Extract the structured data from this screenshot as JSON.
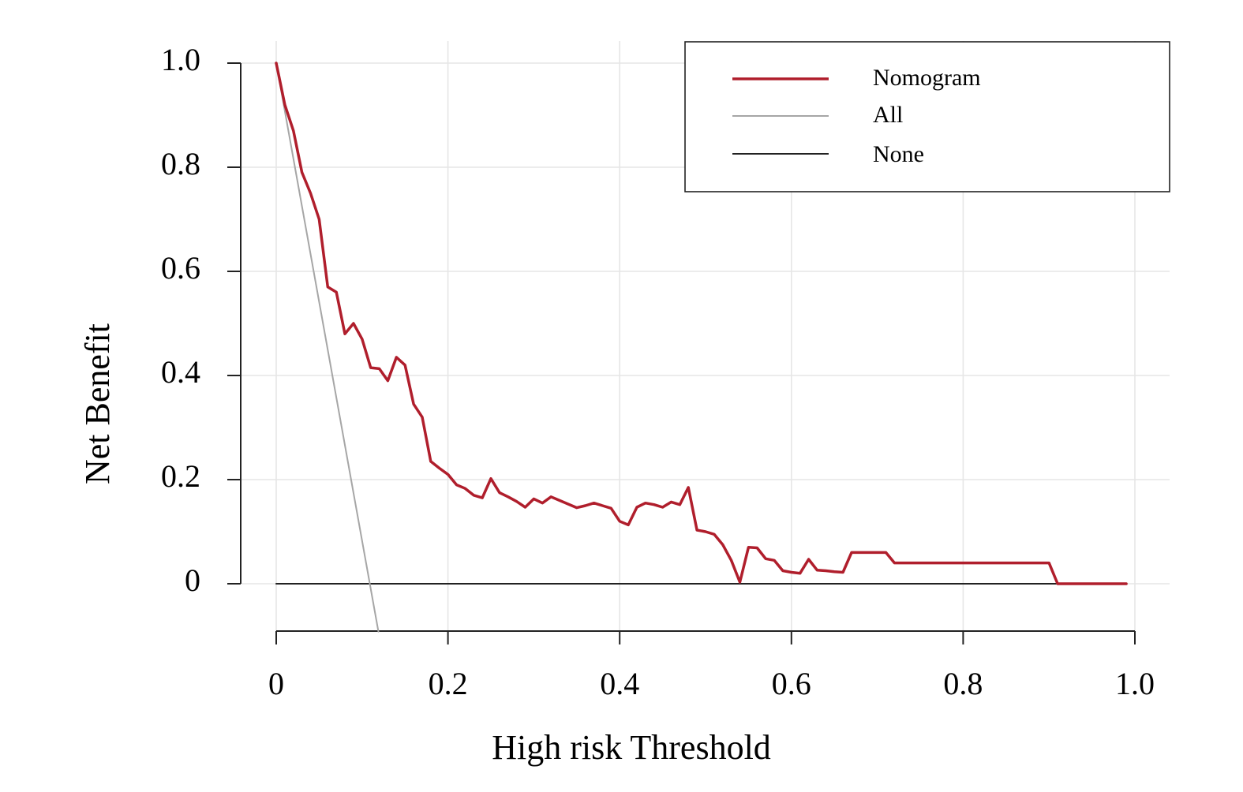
{
  "chart_data": {
    "type": "line",
    "title": "",
    "xlabel": "High risk Threshold",
    "ylabel": "Net Benefit",
    "xlim": [
      0,
      1.0
    ],
    "ylim": [
      -0.092,
      1.0
    ],
    "grid": true,
    "legend_position": "top-right",
    "x_ticks": [
      {
        "value": 0,
        "label": "0"
      },
      {
        "value": 0.2,
        "label": "0.2"
      },
      {
        "value": 0.4,
        "label": "0.4"
      },
      {
        "value": 0.6,
        "label": "0.6"
      },
      {
        "value": 0.8,
        "label": "0.8"
      },
      {
        "value": 1.0,
        "label": "1.0"
      }
    ],
    "y_ticks": [
      {
        "value": 0,
        "label": "0"
      },
      {
        "value": 0.2,
        "label": "0.2"
      },
      {
        "value": 0.4,
        "label": "0.4"
      },
      {
        "value": 0.6,
        "label": "0.6"
      },
      {
        "value": 0.8,
        "label": "0.8"
      },
      {
        "value": 1.0,
        "label": "1.0"
      }
    ],
    "series": [
      {
        "name": "Nomogram",
        "color": "#b01e2c",
        "x": [
          0,
          0.01,
          0.02,
          0.03,
          0.04,
          0.05,
          0.06,
          0.07,
          0.08,
          0.09,
          0.1,
          0.11,
          0.12,
          0.13,
          0.14,
          0.15,
          0.16,
          0.17,
          0.18,
          0.19,
          0.2,
          0.21,
          0.22,
          0.23,
          0.24,
          0.25,
          0.26,
          0.27,
          0.28,
          0.29,
          0.3,
          0.31,
          0.32,
          0.33,
          0.34,
          0.35,
          0.36,
          0.37,
          0.38,
          0.39,
          0.4,
          0.41,
          0.42,
          0.43,
          0.44,
          0.45,
          0.46,
          0.47,
          0.48,
          0.49,
          0.5,
          0.51,
          0.52,
          0.53,
          0.54,
          0.55,
          0.56,
          0.57,
          0.58,
          0.59,
          0.6,
          0.61,
          0.62,
          0.63,
          0.64,
          0.65,
          0.66,
          0.67,
          0.68,
          0.69,
          0.7,
          0.71,
          0.72,
          0.8,
          0.9,
          0.91,
          0.99
        ],
        "y": [
          1.0,
          0.92,
          0.87,
          0.79,
          0.75,
          0.7,
          0.57,
          0.56,
          0.48,
          0.5,
          0.47,
          0.415,
          0.413,
          0.39,
          0.435,
          0.42,
          0.345,
          0.32,
          0.235,
          0.222,
          0.21,
          0.19,
          0.183,
          0.17,
          0.165,
          0.202,
          0.175,
          0.167,
          0.158,
          0.147,
          0.163,
          0.155,
          0.167,
          0.16,
          0.153,
          0.146,
          0.15,
          0.155,
          0.15,
          0.145,
          0.12,
          0.113,
          0.147,
          0.155,
          0.152,
          0.147,
          0.157,
          0.152,
          0.185,
          0.103,
          0.1,
          0.095,
          0.075,
          0.045,
          0.003,
          0.07,
          0.069,
          0.048,
          0.045,
          0.025,
          0.022,
          0.02,
          0.047,
          0.026,
          0.025,
          0.023,
          0.022,
          0.06,
          0.06,
          0.06,
          0.06,
          0.06,
          0.04,
          0.04,
          0.04,
          0.0,
          0.0
        ]
      },
      {
        "name": "All",
        "color": "#a6a6a6",
        "x": [
          0,
          0.119
        ],
        "y": [
          1.0,
          -0.092
        ]
      },
      {
        "name": "None",
        "color": "#222222",
        "x": [
          0,
          0.99
        ],
        "y": [
          0,
          0
        ]
      }
    ]
  }
}
